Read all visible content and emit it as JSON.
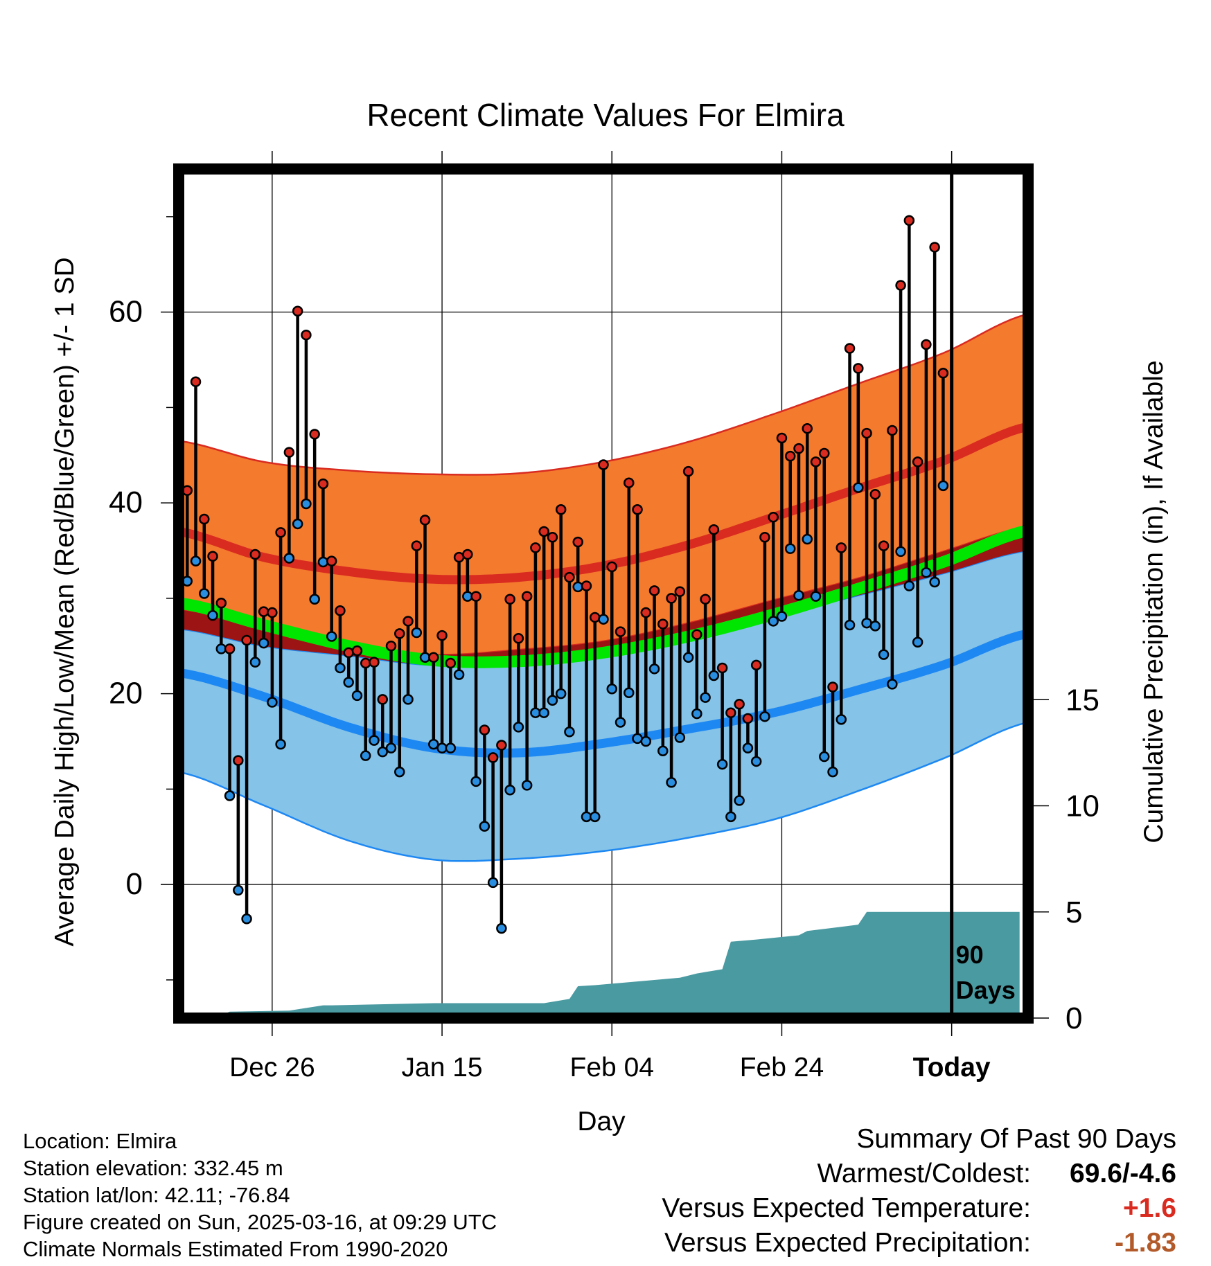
{
  "chart_data": {
    "type": "line",
    "title": "Recent Climate Values For Elmira",
    "xlabel": "Day",
    "ylabel_left": "Average Daily High/Low/Mean (Red/Blue/Green) +/- 1 SD",
    "ylabel_right": "Cumulative Precipitation (in), If Available",
    "x_tick_labels": [
      {
        "day": 10,
        "label": "Dec 26"
      },
      {
        "day": 30,
        "label": "Jan 15"
      },
      {
        "day": 50,
        "label": "Feb 04"
      },
      {
        "day": 70,
        "label": "Feb 24"
      },
      {
        "day": 90,
        "label": "Today"
      }
    ],
    "ylim_left": [
      -14,
      75
    ],
    "yticks_left": [
      0,
      20,
      40,
      60
    ],
    "ylim_right": [
      0,
      40
    ],
    "yticks_right": [
      0,
      5,
      10,
      15
    ],
    "xlim": [
      -1,
      99
    ],
    "grid": true,
    "today_day": 90,
    "window_label": [
      "90",
      "Days"
    ],
    "colors": {
      "high_band": "#f47a2e",
      "high_line": "#d92b20",
      "low_band": "#85c3e8",
      "low_line": "#1e88f2",
      "mean_line": "#00e600",
      "overlap": "#9c1414",
      "precip": "#4a9aa2",
      "high_marker": "#d92b20",
      "low_marker": "#2a8ee0"
    },
    "normals": {
      "days": [
        -1,
        9,
        19,
        29,
        39,
        49,
        59,
        69,
        79,
        89,
        99
      ],
      "high_mean": [
        37.0,
        34.3,
        32.8,
        32.0,
        32.2,
        33.4,
        35.6,
        38.5,
        41.5,
        44.4,
        48.0
      ],
      "high_plus": [
        46.5,
        44.3,
        43.4,
        43.0,
        43.1,
        44.3,
        46.4,
        49.3,
        52.5,
        55.7,
        59.8
      ],
      "high_minus": [
        28.8,
        26.9,
        25.2,
        24.1,
        24.6,
        25.5,
        27.4,
        29.8,
        32.1,
        34.9,
        37.5
      ],
      "low_mean": [
        22.2,
        19.7,
        16.5,
        14.3,
        13.8,
        14.8,
        16.3,
        18.0,
        20.4,
        23.0,
        26.3
      ],
      "low_plus": [
        26.8,
        25.0,
        24.0,
        23.0,
        23.5,
        24.5,
        26.3,
        28.2,
        30.3,
        32.6,
        35.0
      ],
      "low_minus": [
        11.8,
        8.3,
        4.6,
        2.6,
        2.7,
        3.5,
        4.9,
        6.8,
        9.8,
        13.2,
        17.0
      ],
      "mean": [
        29.5,
        27.2,
        25.0,
        23.5,
        23.4,
        24.3,
        26.0,
        28.3,
        31.0,
        33.8,
        37.1
      ]
    },
    "series": [
      {
        "name": "High",
        "values": [
          41.3,
          52.7,
          38.3,
          34.4,
          29.5,
          24.7,
          13.0,
          25.6,
          34.6,
          28.6,
          28.5,
          36.9,
          45.3,
          60.1,
          57.6,
          47.2,
          42.0,
          33.9,
          28.7,
          24.3,
          24.5,
          23.2,
          23.3,
          19.4,
          25.0,
          26.3,
          27.6,
          35.5,
          38.2,
          23.8,
          26.1,
          23.2,
          34.3,
          34.6,
          30.2,
          16.2,
          13.3,
          14.6,
          29.9,
          25.8,
          30.2,
          35.3,
          37.0,
          36.4,
          39.3,
          32.2,
          35.9,
          31.3,
          28.0,
          44.0,
          33.3,
          26.5,
          42.1,
          39.3,
          28.5,
          30.8,
          27.3,
          30.0,
          30.7,
          43.3,
          26.2,
          29.9,
          37.2,
          22.7,
          18.0,
          18.9,
          17.4,
          23.0,
          36.4,
          38.5,
          46.8,
          44.9,
          45.7,
          47.8,
          44.3,
          45.2,
          20.7,
          35.3,
          56.2,
          54.1,
          47.3,
          40.9,
          35.5,
          47.6,
          62.8,
          69.6,
          44.3,
          56.6,
          66.8,
          53.6
        ]
      },
      {
        "name": "Low",
        "values": [
          31.8,
          33.9,
          30.5,
          28.2,
          24.7,
          9.3,
          -0.6,
          -3.6,
          23.3,
          25.3,
          19.1,
          14.7,
          34.2,
          37.8,
          39.9,
          29.9,
          33.8,
          26.0,
          22.7,
          21.2,
          19.8,
          13.5,
          15.1,
          13.9,
          14.3,
          11.8,
          19.4,
          26.4,
          23.8,
          14.7,
          14.3,
          14.3,
          22.0,
          30.2,
          10.8,
          6.1,
          0.2,
          -4.6,
          9.9,
          16.5,
          10.4,
          18.0,
          18.0,
          19.3,
          20.0,
          16.0,
          31.2,
          7.1,
          7.1,
          27.8,
          20.5,
          17.0,
          20.1,
          15.3,
          15.0,
          22.6,
          14.0,
          10.7,
          15.4,
          23.8,
          17.9,
          19.6,
          21.9,
          12.6,
          7.1,
          8.8,
          14.3,
          12.9,
          17.6,
          27.6,
          28.1,
          35.2,
          30.3,
          36.2,
          30.2,
          13.4,
          11.8,
          17.3,
          27.2,
          41.6,
          27.4,
          27.1,
          24.1,
          21.0,
          34.9,
          31.3,
          25.4,
          32.7,
          31.7,
          41.8
        ]
      },
      {
        "name": "Cumulative Precipitation",
        "days": [
          3,
          5,
          12,
          16,
          17,
          29,
          42,
          45,
          46,
          48,
          58,
          60,
          63,
          64,
          67,
          72,
          73,
          77,
          79,
          80,
          98
        ],
        "values": [
          0.0,
          0.3,
          0.35,
          0.6,
          0.6,
          0.7,
          0.7,
          0.9,
          1.5,
          1.55,
          1.9,
          2.1,
          2.3,
          3.6,
          3.7,
          3.9,
          4.1,
          4.3,
          4.4,
          5.0,
          5.0
        ]
      }
    ]
  },
  "footer": {
    "location": "Location: Elmira",
    "elevation": "Station elevation: 332.45 m",
    "latlon": "Station lat/lon: 42.11; -76.84",
    "created": "Figure created on Sun, 2025-03-16, at 09:29 UTC",
    "normals": "Climate Normals Estimated From 1990-2020"
  },
  "summary": {
    "heading": "Summary Of Past 90 Days",
    "warm_cold_label": "Warmest/Coldest:",
    "warm_cold_value": "69.6/-4.6",
    "temp_label": "Versus Expected Temperature:",
    "temp_value": "+1.6",
    "temp_color": "#d92b20",
    "precip_label": "Versus Expected Precipitation:",
    "precip_value": "-1.83",
    "precip_color": "#b35a2a"
  }
}
